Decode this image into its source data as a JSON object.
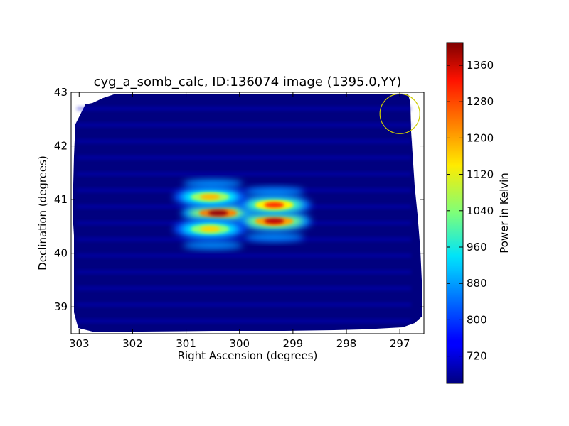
{
  "chart_data": {
    "type": "heatmap",
    "title": "cyg_a_somb_calc, ID:136074 image (1395.0,YY)",
    "xlabel": "Right Ascension (degrees)",
    "ylabel": "Declination (degrees)",
    "xlim": [
      303.15,
      296.55
    ],
    "ylim": [
      38.5,
      43.0
    ],
    "x_ticks": [
      303,
      302,
      301,
      300,
      299,
      298,
      297
    ],
    "y_ticks": [
      39,
      40,
      41,
      42,
      43
    ],
    "colorbar": {
      "label": "Power in Kelvin",
      "min": 660,
      "max": 1410,
      "ticks": [
        720,
        800,
        880,
        960,
        1040,
        1120,
        1200,
        1280,
        1360
      ],
      "colormap": "jet"
    },
    "background_level": 700,
    "fringe_peaks": [
      {
        "ra": 300.4,
        "dec": 40.75,
        "peak": 1390
      },
      {
        "ra": 299.35,
        "dec": 40.6,
        "peak": 1360
      },
      {
        "ra": 299.35,
        "dec": 40.9,
        "peak": 1280
      },
      {
        "ra": 300.55,
        "dec": 41.05,
        "peak": 1180
      },
      {
        "ra": 300.55,
        "dec": 40.45,
        "peak": 1160
      }
    ],
    "marker_circle": {
      "ra": 297.0,
      "dec": 42.6,
      "color": "#cccc00"
    },
    "grid": false
  }
}
